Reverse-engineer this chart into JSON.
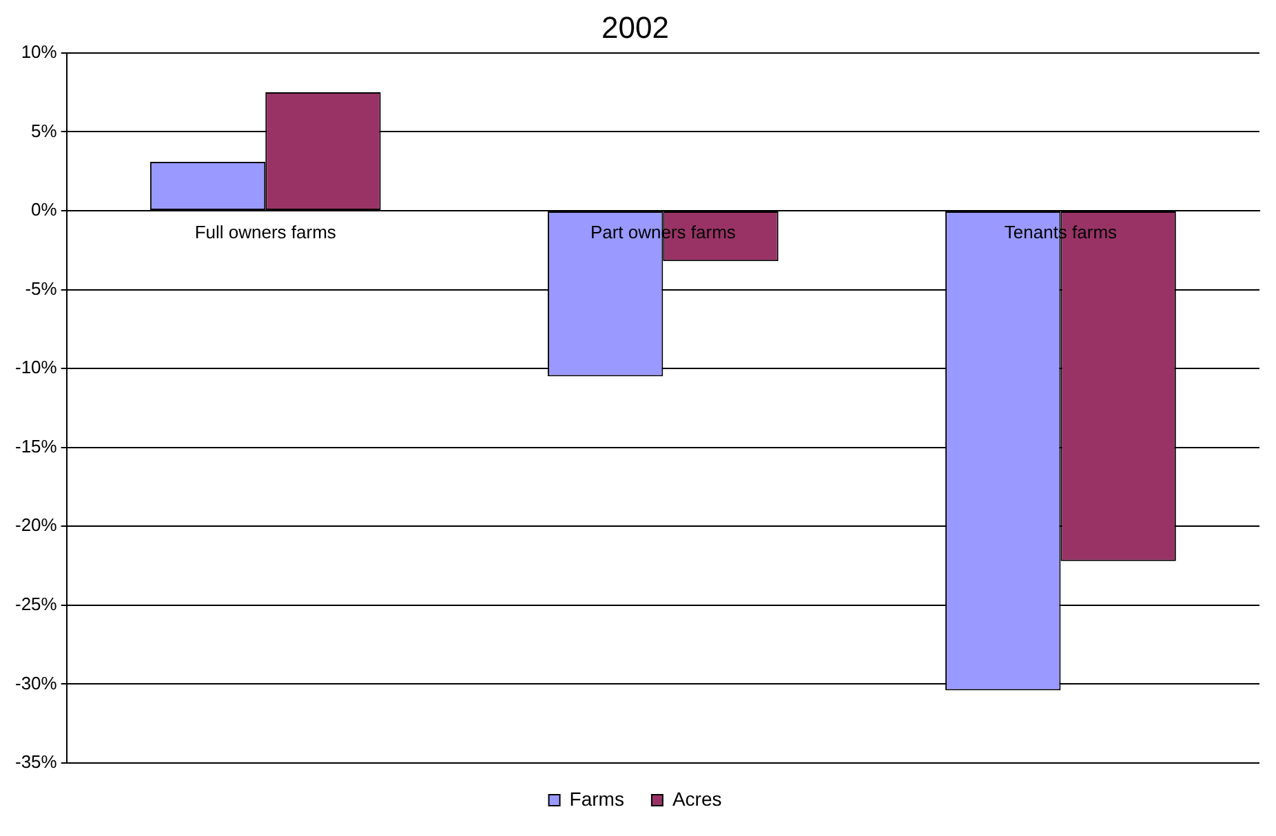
{
  "chart_data": {
    "type": "bar",
    "title": "2002",
    "categories": [
      "Full owners farms",
      "Part owners farms",
      "Tenants farms"
    ],
    "series": [
      {
        "name": "Farms",
        "color": "#9999ff",
        "values": [
          3.1,
          -10.5,
          -30.4
        ]
      },
      {
        "name": "Acres",
        "color": "#993366",
        "values": [
          7.5,
          -3.2,
          -22.2
        ]
      }
    ],
    "ylim": [
      -35,
      10
    ],
    "yticks": [
      {
        "value": -35,
        "label": "-35%"
      },
      {
        "value": -30,
        "label": "-30%"
      },
      {
        "value": -25,
        "label": "-25%"
      },
      {
        "value": -20,
        "label": "-20%"
      },
      {
        "value": -15,
        "label": "-15%"
      },
      {
        "value": -10,
        "label": "-10%"
      },
      {
        "value": -5,
        "label": "-5%"
      },
      {
        "value": 0,
        "label": "0%"
      },
      {
        "value": 5,
        "label": "5%"
      },
      {
        "value": 10,
        "label": "10%"
      }
    ],
    "grid": "y",
    "legend": "bottom"
  }
}
